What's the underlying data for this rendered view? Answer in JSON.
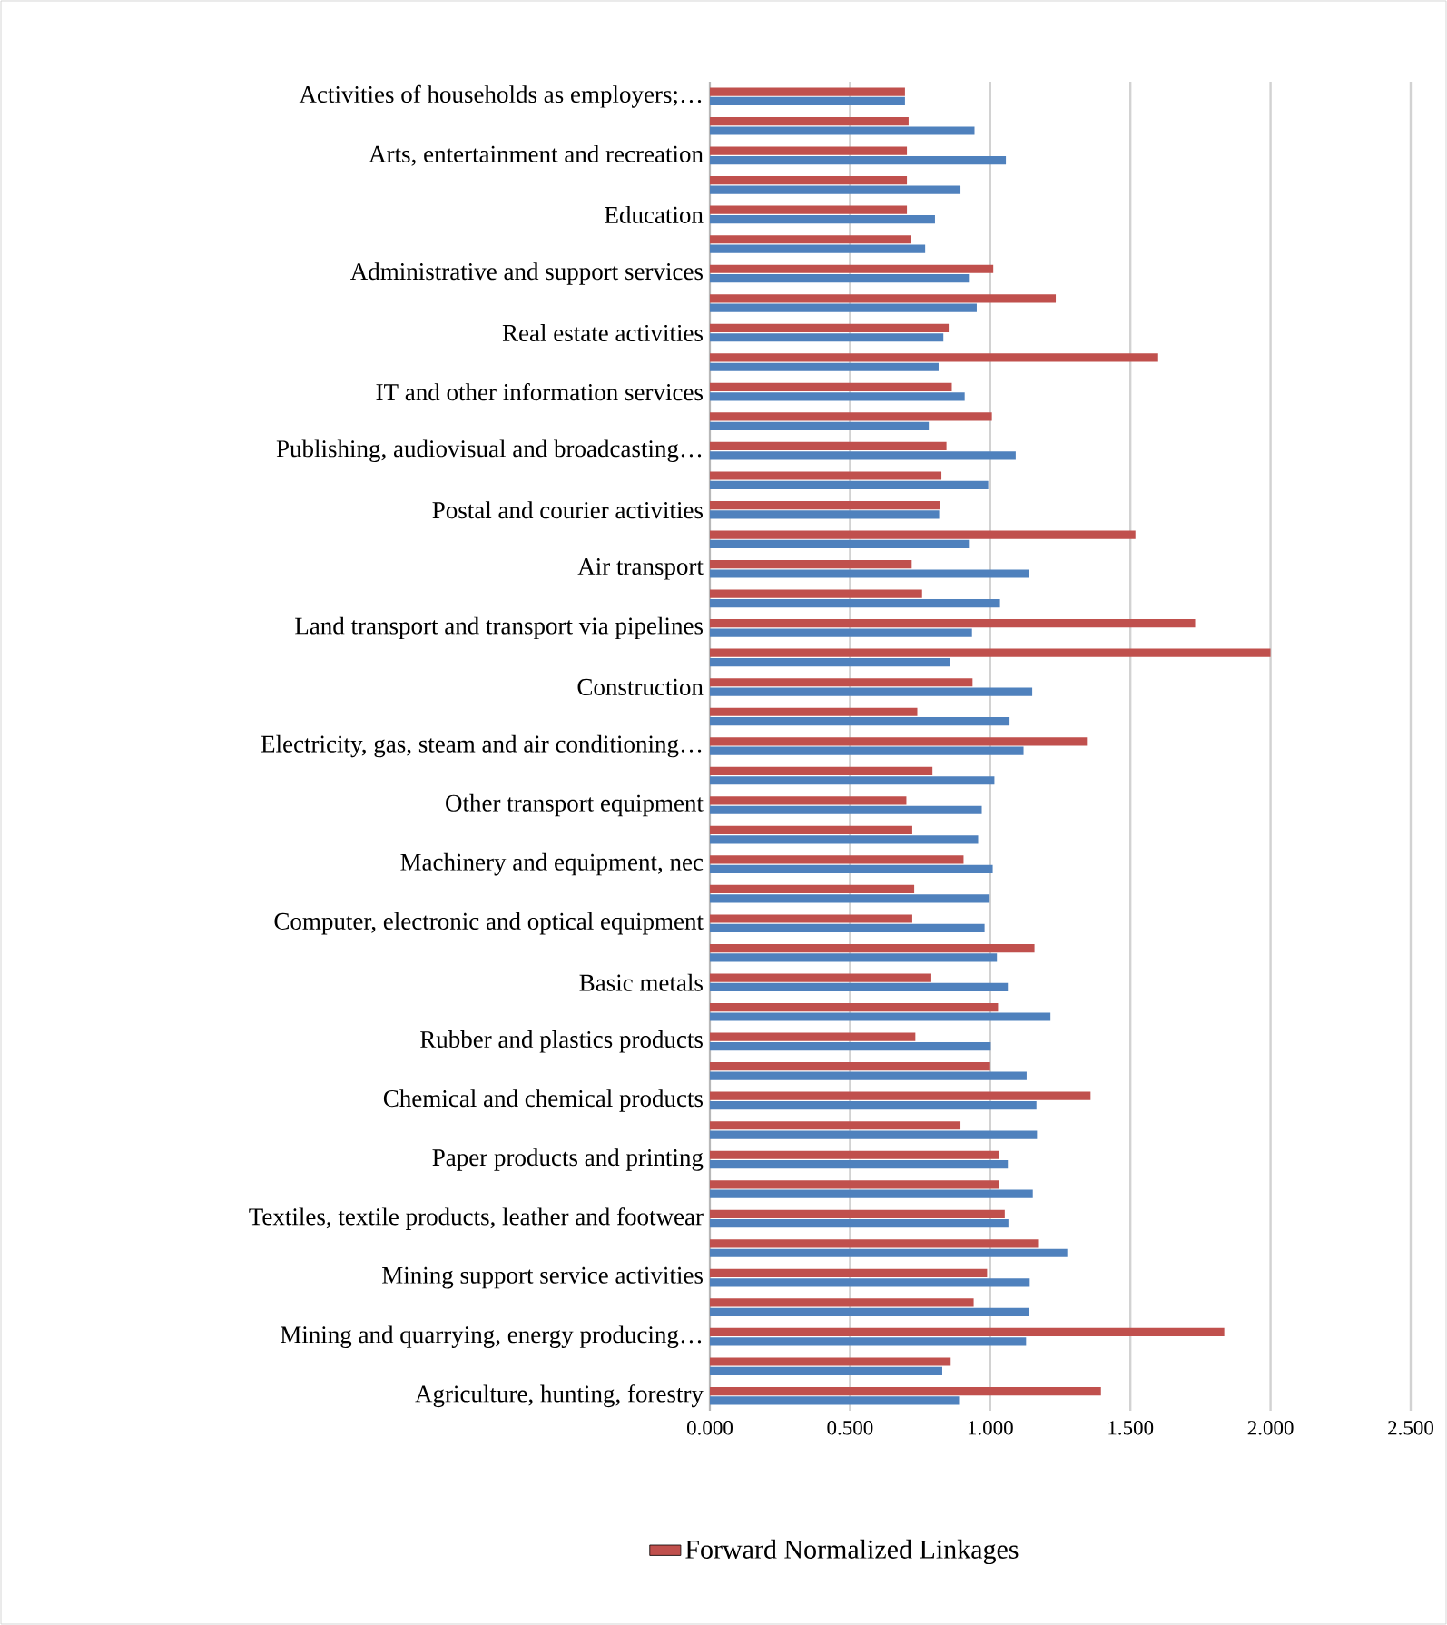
{
  "chart_data": {
    "type": "bar",
    "orientation": "horizontal",
    "categories": [
      "Activities of households as employers;…",
      null,
      "Arts, entertainment and recreation",
      null,
      "Education",
      null,
      "Administrative and support services",
      null,
      "Real estate activities",
      null,
      "IT and other information services",
      null,
      "Publishing, audiovisual and broadcasting…",
      null,
      "Postal and courier activities",
      null,
      "Air transport",
      null,
      "Land transport and transport via pipelines",
      null,
      "Construction",
      null,
      "Electricity, gas, steam and air conditioning…",
      null,
      "Other transport equipment",
      null,
      "Machinery and equipment, nec",
      null,
      "Computer, electronic and optical equipment",
      null,
      "Basic metals",
      null,
      "Rubber and plastics products",
      null,
      "Chemical and chemical products",
      null,
      "Paper products and printing",
      null,
      "Textiles, textile products, leather and footwear",
      null,
      "Mining support service activities",
      null,
      "Mining and quarrying, energy producing…",
      null,
      "Agriculture, hunting, forestry"
    ],
    "series": [
      {
        "color": "#4f81bd",
        "values": [
          0.696,
          0.944,
          1.056,
          0.894,
          0.803,
          0.768,
          0.924,
          0.952,
          0.833,
          0.816,
          0.909,
          0.781,
          1.091,
          0.993,
          0.818,
          0.924,
          1.137,
          1.035,
          0.935,
          0.857,
          1.15,
          1.069,
          1.119,
          1.015,
          0.97,
          0.957,
          1.009,
          0.998,
          0.98,
          1.024,
          1.063,
          1.215,
          1.002,
          1.13,
          1.165,
          1.167,
          1.063,
          1.152,
          1.065,
          1.275,
          1.141,
          1.139,
          1.128,
          0.829,
          0.889
        ]
      },
      {
        "name": "Forward Normalized Linkages",
        "color": "#c0504d",
        "values": [
          0.696,
          0.709,
          0.703,
          0.703,
          0.703,
          0.718,
          1.011,
          1.234,
          0.852,
          1.599,
          0.863,
          1.006,
          0.844,
          0.826,
          0.822,
          1.518,
          0.72,
          0.757,
          1.731,
          2.0,
          0.937,
          0.74,
          1.345,
          0.794,
          0.701,
          0.722,
          0.905,
          0.729,
          0.722,
          1.158,
          0.79,
          1.028,
          0.733,
          1.0,
          1.358,
          0.894,
          1.033,
          1.03,
          1.052,
          1.174,
          0.989,
          0.941,
          1.835,
          0.859,
          1.395
        ]
      }
    ],
    "xlim": [
      0,
      2.5
    ],
    "xticks": [
      {
        "value": 0,
        "label": "0.000"
      },
      {
        "value": 0.5,
        "label": "0.500"
      },
      {
        "value": 1,
        "label": "1.000"
      },
      {
        "value": 1.5,
        "label": "1.500"
      },
      {
        "value": 2,
        "label": "2.000"
      },
      {
        "value": 2.5,
        "label": "2.500"
      }
    ],
    "grid": "x",
    "legend": "bottom"
  }
}
